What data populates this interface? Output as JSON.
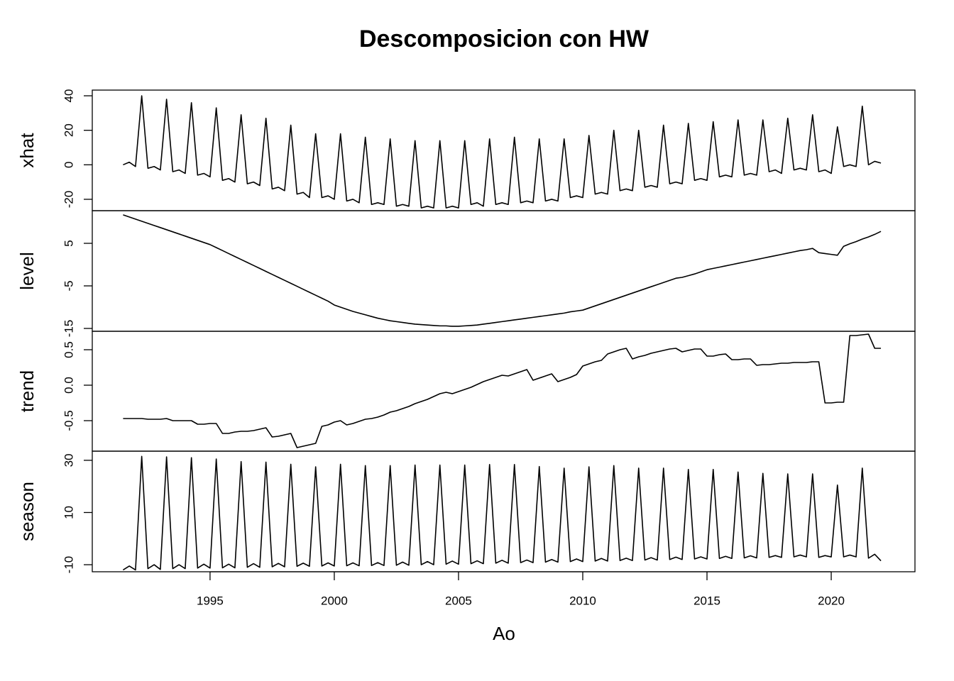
{
  "chart_data": {
    "type": "line",
    "title": "Descomposicion con HW",
    "xlabel": "Ao",
    "color": "#000000",
    "xlim": [
      1990.26,
      2023.37
    ],
    "xticks": [
      1995,
      2000,
      2005,
      2010,
      2015,
      2020
    ],
    "x": [
      1991.5,
      1991.75,
      1992,
      1992.25,
      1992.5,
      1992.75,
      1993,
      1993.25,
      1993.5,
      1993.75,
      1994,
      1994.25,
      1994.5,
      1994.75,
      1995,
      1995.25,
      1995.5,
      1995.75,
      1996,
      1996.25,
      1996.5,
      1996.75,
      1997,
      1997.25,
      1997.5,
      1997.75,
      1998,
      1998.25,
      1998.5,
      1998.75,
      1999,
      1999.25,
      1999.5,
      1999.75,
      2000,
      2000.25,
      2000.5,
      2000.75,
      2001,
      2001.25,
      2001.5,
      2001.75,
      2002,
      2002.25,
      2002.5,
      2002.75,
      2003,
      2003.25,
      2003.5,
      2003.75,
      2004,
      2004.25,
      2004.5,
      2004.75,
      2005,
      2005.25,
      2005.5,
      2005.75,
      2006,
      2006.25,
      2006.5,
      2006.75,
      2007,
      2007.25,
      2007.5,
      2007.75,
      2008,
      2008.25,
      2008.5,
      2008.75,
      2009,
      2009.25,
      2009.5,
      2009.75,
      2010,
      2010.25,
      2010.5,
      2010.75,
      2011,
      2011.25,
      2011.5,
      2011.75,
      2012,
      2012.25,
      2012.5,
      2012.75,
      2013,
      2013.25,
      2013.5,
      2013.75,
      2014,
      2014.25,
      2014.5,
      2014.75,
      2015,
      2015.25,
      2015.5,
      2015.75,
      2016,
      2016.25,
      2016.5,
      2016.75,
      2017,
      2017.25,
      2017.5,
      2017.75,
      2018,
      2018.25,
      2018.5,
      2018.75,
      2019,
      2019.25,
      2019.5,
      2019.75,
      2020,
      2020.25,
      2020.5,
      2020.75,
      2021,
      2021.25,
      2021.5,
      2021.75,
      2022
    ],
    "panels": [
      {
        "ylabel": "xhat",
        "ylim": [
          -26.6,
          43.3
        ],
        "yticks": [
          -20,
          0,
          20,
          40
        ],
        "values": [
          0,
          1.5,
          -1,
          40,
          -2,
          -1,
          -3,
          38,
          -4,
          -3,
          -5,
          36,
          -6,
          -5,
          -7,
          33,
          -9,
          -8,
          -10,
          29,
          -11,
          -10,
          -12,
          27,
          -14,
          -13,
          -15,
          23,
          -17,
          -16,
          -19,
          18,
          -19,
          -18,
          -20,
          18,
          -21,
          -20,
          -22,
          16,
          -23,
          -22,
          -23,
          15,
          -24,
          -23,
          -24,
          14,
          -25,
          -24,
          -25,
          14,
          -25,
          -24,
          -25,
          14,
          -23,
          -22,
          -24,
          15,
          -23,
          -22,
          -23,
          16,
          -22,
          -21,
          -22,
          15,
          -21,
          -20,
          -21,
          15,
          -19,
          -18,
          -19,
          17,
          -17,
          -16,
          -17,
          20,
          -15,
          -14,
          -15,
          20,
          -13,
          -12,
          -13,
          23,
          -11,
          -10,
          -11,
          24,
          -9,
          -8,
          -9,
          25,
          -7,
          -6,
          -7,
          26,
          -6,
          -5,
          -6,
          26,
          -4,
          -3,
          -5,
          27,
          -3,
          -2,
          -3,
          29,
          -4,
          -3,
          -5,
          22,
          -1,
          0,
          -1,
          34,
          0,
          2,
          1
        ]
      },
      {
        "ylabel": "level",
        "ylim": [
          -15.67,
          12.67
        ],
        "yticks": [
          -15,
          -5,
          5
        ],
        "values": [
          11.7,
          11.2,
          10.7,
          10.2,
          9.7,
          9.2,
          8.7,
          8.2,
          7.7,
          7.2,
          6.7,
          6.2,
          5.7,
          5.2,
          4.7,
          4.0,
          3.3,
          2.6,
          1.9,
          1.2,
          0.5,
          -0.2,
          -0.9,
          -1.6,
          -2.3,
          -3.0,
          -3.7,
          -4.4,
          -5.1,
          -5.8,
          -6.5,
          -7.2,
          -7.9,
          -8.6,
          -9.5,
          -10.0,
          -10.5,
          -11.0,
          -11.4,
          -11.8,
          -12.2,
          -12.6,
          -12.9,
          -13.2,
          -13.4,
          -13.6,
          -13.8,
          -14.0,
          -14.1,
          -14.2,
          -14.3,
          -14.4,
          -14.4,
          -14.5,
          -14.5,
          -14.4,
          -14.3,
          -14.2,
          -14.0,
          -13.8,
          -13.6,
          -13.4,
          -13.2,
          -13.0,
          -12.8,
          -12.6,
          -12.4,
          -12.2,
          -12.0,
          -11.8,
          -11.6,
          -11.4,
          -11.1,
          -10.9,
          -10.7,
          -10.2,
          -9.7,
          -9.2,
          -8.7,
          -8.2,
          -7.7,
          -7.2,
          -6.7,
          -6.2,
          -5.7,
          -5.2,
          -4.7,
          -4.2,
          -3.7,
          -3.2,
          -3.0,
          -2.6,
          -2.2,
          -1.7,
          -1.2,
          -0.9,
          -0.6,
          -0.3,
          0.0,
          0.3,
          0.6,
          0.9,
          1.2,
          1.5,
          1.8,
          2.1,
          2.4,
          2.7,
          3.0,
          3.3,
          3.5,
          3.8,
          2.8,
          2.6,
          2.4,
          2.2,
          4.3,
          4.9,
          5.4,
          6.0,
          6.5,
          7.1,
          7.8
        ]
      },
      {
        "ylabel": "trend",
        "ylim": [
          -0.93,
          0.76
        ],
        "yticks": [
          -0.5,
          {
            "value": 0,
            "label": "0.0"
          },
          0.5
        ],
        "values": [
          -0.47,
          -0.47,
          -0.47,
          -0.47,
          -0.48,
          -0.48,
          -0.48,
          -0.47,
          -0.5,
          -0.5,
          -0.5,
          -0.5,
          -0.55,
          -0.55,
          -0.54,
          -0.54,
          -0.68,
          -0.68,
          -0.66,
          -0.65,
          -0.65,
          -0.64,
          -0.62,
          -0.6,
          -0.73,
          -0.72,
          -0.7,
          -0.68,
          -0.88,
          -0.86,
          -0.84,
          -0.82,
          -0.58,
          -0.56,
          -0.52,
          -0.5,
          -0.56,
          -0.54,
          -0.51,
          -0.48,
          -0.47,
          -0.45,
          -0.42,
          -0.38,
          -0.36,
          -0.33,
          -0.3,
          -0.26,
          -0.23,
          -0.2,
          -0.16,
          -0.12,
          -0.1,
          -0.12,
          -0.09,
          -0.06,
          -0.03,
          0.01,
          0.05,
          0.08,
          0.11,
          0.14,
          0.13,
          0.16,
          0.19,
          0.22,
          0.07,
          0.1,
          0.13,
          0.16,
          0.05,
          0.08,
          0.11,
          0.15,
          0.27,
          0.3,
          0.33,
          0.35,
          0.44,
          0.47,
          0.5,
          0.52,
          0.37,
          0.4,
          0.42,
          0.45,
          0.47,
          0.49,
          0.51,
          0.52,
          0.47,
          0.49,
          0.51,
          0.51,
          0.41,
          0.41,
          0.43,
          0.44,
          0.36,
          0.36,
          0.37,
          0.37,
          0.28,
          0.29,
          0.29,
          0.3,
          0.31,
          0.31,
          0.32,
          0.32,
          0.32,
          0.33,
          0.33,
          -0.25,
          -0.25,
          -0.24,
          -0.24,
          0.7,
          0.7,
          0.71,
          0.72,
          0.52,
          0.52
        ]
      },
      {
        "ylabel": "season",
        "ylim": [
          -12.7,
          33.5
        ],
        "yticks": [
          -10,
          10,
          30
        ],
        "values": [
          -12,
          -10.5,
          -12,
          31.5,
          -11.5,
          -10,
          -11.8,
          31.3,
          -11.5,
          -10,
          -11.5,
          31,
          -11.3,
          -9.8,
          -11.3,
          30.5,
          -11.2,
          -9.8,
          -11.2,
          29.5,
          -11,
          -9.6,
          -11,
          29.3,
          -10.8,
          -9.5,
          -10.8,
          28.5,
          -10.6,
          -9.4,
          -10.6,
          27.5,
          -10.5,
          -9.3,
          -10.5,
          28.5,
          -10.4,
          -9.3,
          -10.4,
          28,
          -10.3,
          -9.2,
          -10.3,
          28,
          -10.2,
          -9,
          -10.2,
          28.2,
          -10,
          -8.8,
          -10,
          28.2,
          -9.8,
          -8.6,
          -9.8,
          28.2,
          -9.6,
          -8.5,
          -9.6,
          28.4,
          -9.4,
          -8.3,
          -9.4,
          28.4,
          -9.2,
          -8.2,
          -9.2,
          27.6,
          -9,
          -8,
          -9,
          27,
          -8.8,
          -7.8,
          -8.8,
          27.5,
          -8.6,
          -7.6,
          -8.6,
          28,
          -8.4,
          -7.5,
          -8.4,
          27,
          -8.2,
          -7.3,
          -8.2,
          27,
          -8,
          -7.1,
          -8,
          26.5,
          -7.8,
          -7,
          -7.8,
          26.5,
          -7.6,
          -6.8,
          -7.6,
          25.5,
          -7.4,
          -6.6,
          -7.4,
          25,
          -7.2,
          -6.5,
          -7.2,
          24.8,
          -7,
          -6.3,
          -7,
          24.8,
          -7.2,
          -6.5,
          -7,
          20.5,
          -7,
          -6.3,
          -7,
          27,
          -7.5,
          -6,
          -8.5
        ]
      }
    ]
  }
}
